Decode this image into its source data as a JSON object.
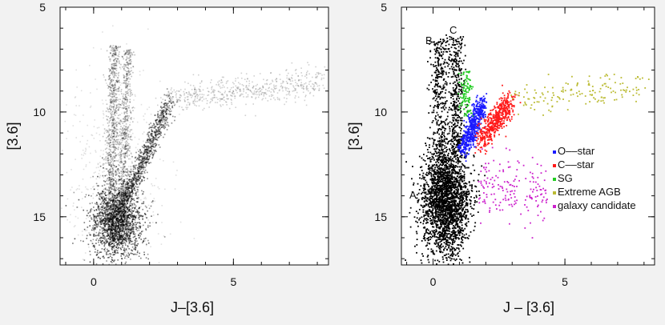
{
  "chart_data": [
    {
      "type": "scatter",
      "style": "density",
      "xlabel": "J–[3.6]",
      "ylabel": "[3.6]",
      "xlim": [
        -1.2,
        8.4
      ],
      "ylim": [
        17.3,
        5
      ],
      "y_inverted": true,
      "xticks": [
        0,
        5
      ],
      "yticks": [
        5,
        10,
        15
      ],
      "color": "#000000",
      "series": [
        {
          "x": [
            0.3,
            0.9,
            1.5,
            2.4,
            4.5,
            7.5
          ],
          "y": [
            14.8,
            12.8,
            11.0,
            9.6,
            9.0,
            8.6
          ]
        }
      ]
    },
    {
      "type": "scatter",
      "xlabel": "J – [3.6]",
      "ylabel": "[3.6]",
      "xlim": [
        -1.2,
        8.4
      ],
      "ylim": [
        17.3,
        5
      ],
      "y_inverted": true,
      "xticks": [
        0,
        5
      ],
      "yticks": [
        5,
        10,
        15
      ],
      "annotations": [
        {
          "text": "A",
          "x": -0.7,
          "y": 14.0
        },
        {
          "text": "B",
          "x": -0.1,
          "y": 6.6
        },
        {
          "text": "C",
          "x": 0.8,
          "y": 6.1
        }
      ],
      "legend_position": "right",
      "series": [
        {
          "name": "",
          "color": "#000000",
          "x": [
            -0.5,
            0.2,
            0.6,
            1.2,
            1.8
          ],
          "y": [
            15.4,
            13.5,
            10.5,
            14.8,
            15.5
          ]
        },
        {
          "name": "O––star",
          "color": "#1a1aff",
          "x": [
            1.1,
            1.3,
            1.5,
            1.8
          ],
          "y": [
            11.8,
            11.0,
            10.3,
            9.5
          ]
        },
        {
          "name": "C––star",
          "color": "#ff1a1a",
          "x": [
            1.7,
            2.0,
            2.4,
            2.8
          ],
          "y": [
            11.6,
            10.6,
            10.0,
            9.5
          ]
        },
        {
          "name": "SG",
          "color": "#22cc22",
          "x": [
            1.1,
            1.3,
            1.4
          ],
          "y": [
            10.0,
            9.0,
            8.0
          ]
        },
        {
          "name": "Extreme AGB",
          "color": "#bbbb33",
          "x": [
            3.0,
            4.5,
            6.0,
            7.5
          ],
          "y": [
            9.5,
            9.3,
            9.0,
            8.7
          ]
        },
        {
          "name": "galaxy candidate",
          "color": "#cc22cc",
          "x": [
            1.6,
            2.2,
            3.0,
            4.0
          ],
          "y": [
            15.2,
            14.5,
            13.8,
            13.3
          ]
        }
      ]
    }
  ]
}
